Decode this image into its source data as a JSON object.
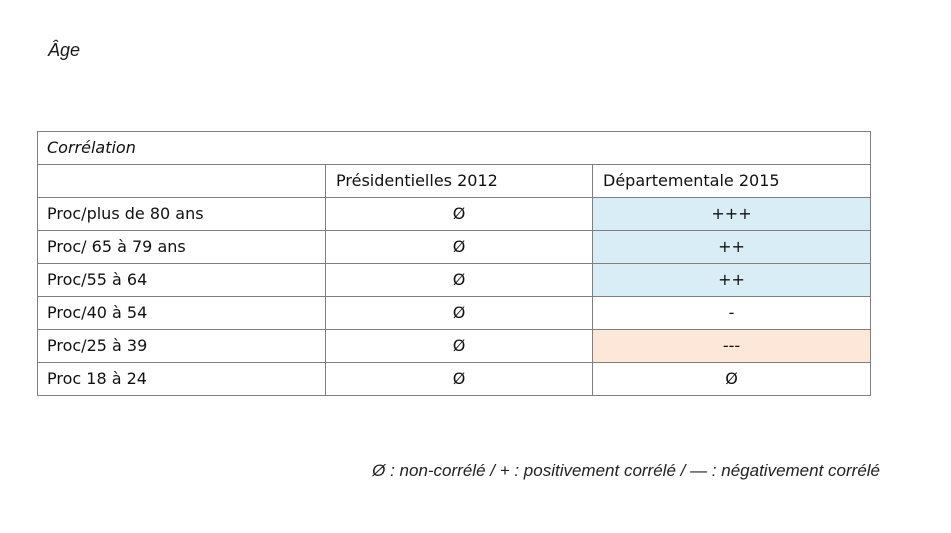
{
  "heading": "Âge",
  "table": {
    "title": "Corrélation",
    "columns": [
      "",
      "Présidentielles 2012",
      "Départementale 2015"
    ],
    "rows": [
      {
        "label": "Proc/plus de 80 ans",
        "pres_2012": "Ø",
        "dep_2015": "+++",
        "dep_2015_tone": "positive"
      },
      {
        "label": "Proc/ 65 à 79 ans",
        "pres_2012": "Ø",
        "dep_2015": "++",
        "dep_2015_tone": "positive"
      },
      {
        "label": "Proc/55 à 64",
        "pres_2012": "Ø",
        "dep_2015": "++",
        "dep_2015_tone": "positive"
      },
      {
        "label": "Proc/40 à 54",
        "pres_2012": "Ø",
        "dep_2015": "-",
        "dep_2015_tone": "neutral"
      },
      {
        "label": "Proc/25 à 39",
        "pres_2012": "Ø",
        "dep_2015": "---",
        "dep_2015_tone": "negative"
      },
      {
        "label": "Proc 18 à 24",
        "pres_2012": "Ø",
        "dep_2015": "Ø",
        "dep_2015_tone": "neutral"
      }
    ],
    "tone_colors": {
      "positive": "#d8edf5",
      "negative": "#fce7d8",
      "neutral": "#ffffff"
    }
  },
  "legend": "Ø : non-corrélé / + : positivement corrélé / — : négativement corrélé"
}
